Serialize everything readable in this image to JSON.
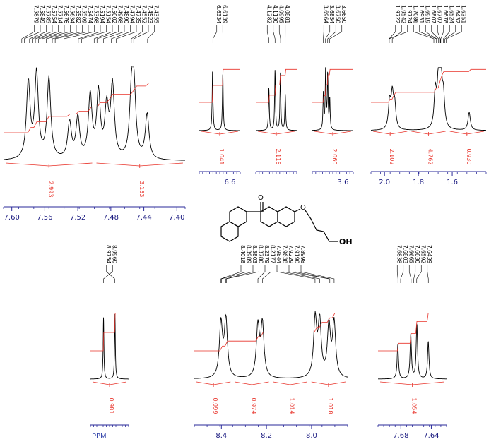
{
  "panels": [
    {
      "id": "aromatic-top",
      "peak_labels": [
        "7.5879",
        "7.5849",
        "7.5785",
        "7.5754",
        "7.5714",
        "7.5676",
        "7.5634",
        "7.5582",
        "7.5509",
        "7.5474",
        "7.5368",
        "7.5194",
        "7.5154",
        "7.5002",
        "7.4968",
        "7.4890",
        "7.4794",
        "7.4735",
        "7.4552",
        "7.4523",
        "7.4355"
      ],
      "integrals": [
        "2.993",
        "3.153"
      ],
      "ticks": [
        "7.60",
        "7.56",
        "7.52",
        "7.48",
        "7.44",
        "7.40"
      ],
      "x_range": [
        7.61,
        7.39
      ]
    },
    {
      "id": "olefin-6.6",
      "peak_labels": [
        "6.6334",
        "6.6139"
      ],
      "integrals": [
        "1.041"
      ],
      "ticks": [
        "6.6"
      ],
      "x_range": [
        6.66,
        6.58
      ]
    },
    {
      "id": "ch2o",
      "peak_labels": [
        "4.1282",
        "4.1130",
        "4.0995",
        "4.0881"
      ],
      "integrals": [
        "2.116"
      ],
      "ticks": [],
      "x_range": [
        4.16,
        4.06
      ]
    },
    {
      "id": "ch2oh",
      "peak_labels": [
        "3.6964",
        "3.6854",
        "3.6750",
        "3.6650"
      ],
      "integrals": [
        "2.060"
      ],
      "ticks": [
        "3.6"
      ],
      "x_range": [
        3.75,
        3.55
      ]
    },
    {
      "id": "aliphatic",
      "peak_labels": [
        "1.9722",
        "1.9542",
        "1.9724",
        "1.7086",
        "1.6931",
        "1.6919",
        "1.6807",
        "1.6707",
        "1.6678",
        "1.6524",
        "1.6432",
        "1.6351"
      ],
      "integrals": [
        "2.102",
        "4.762",
        "0.930"
      ],
      "ticks": [
        "2.0",
        "1.8",
        "1.6"
      ],
      "x_range": [
        2.08,
        1.4
      ]
    },
    {
      "id": "naphthyl-8.97",
      "peak_labels": [
        "8.9754",
        "8.9960"
      ],
      "integrals": [
        "0.981"
      ],
      "ticks": [],
      "x_range": [
        9.02,
        8.95
      ]
    },
    {
      "id": "aromatic-8.0-8.4",
      "peak_labels": [
        "8.4018",
        "8.3989",
        "8.3803",
        "8.3780",
        "8.2379",
        "8.2177",
        "7.9844",
        "7.9638",
        "7.9229",
        "7.9190",
        "7.8998"
      ],
      "integrals": [
        "0.999",
        "0.974",
        "1.014",
        "1.018"
      ],
      "ticks": [
        "8.4",
        "8.2",
        "8.0"
      ],
      "x_range": [
        8.52,
        7.84
      ]
    },
    {
      "id": "aromatic-7.66",
      "peak_labels": [
        "7.6838",
        "7.6803",
        "7.6665",
        "7.6630",
        "7.6592",
        "7.6439"
      ],
      "integrals": [
        "1.054"
      ],
      "ticks": [
        "7.68",
        "7.64"
      ],
      "x_range": [
        7.71,
        7.62
      ]
    }
  ],
  "axis_unit": "PPM",
  "structure": {
    "hydroxyl_label": "OH",
    "carbonyl_label": "O",
    "ether_label": "O"
  },
  "colors": {
    "spectrum": "#000000",
    "integral": "#e8332a",
    "axis": "#2a2a9a"
  },
  "chart_data": [
    {
      "type": "line",
      "description_label": "",
      "xlabel": "",
      "x_ticks": [
        "7.60",
        "7.56",
        "7.52",
        "7.48",
        "7.44",
        "7.40"
      ],
      "series": [
        {
          "values": [
            [
              7.58,
              0.85
            ],
            [
              7.57,
              0.95
            ],
            [
              7.555,
              0.9
            ],
            [
              7.53,
              0.4
            ],
            [
              7.52,
              0.45
            ],
            [
              7.505,
              0.7
            ],
            [
              7.495,
              0.72
            ],
            [
              7.485,
              0.55
            ],
            [
              7.478,
              0.8
            ],
            [
              7.455,
              0.65
            ],
            [
              7.452,
              0.72
            ],
            [
              7.436,
              0.5
            ]
          ]
        }
      ],
      "integrals": [
        2.993,
        3.153
      ]
    },
    {
      "type": "line",
      "x_ticks": [
        "6.6"
      ],
      "series": [
        {
          "values": [
            [
              6.634,
              1.0
            ],
            [
              6.614,
              0.95
            ]
          ]
        }
      ],
      "integrals": [
        1.041
      ]
    },
    {
      "type": "line",
      "x_ticks": [],
      "series": [
        {
          "values": [
            [
              4.128,
              0.7
            ],
            [
              4.113,
              1.0
            ],
            [
              4.1,
              0.95
            ],
            [
              4.088,
              0.6
            ]
          ]
        }
      ],
      "integrals": [
        2.116
      ]
    },
    {
      "type": "line",
      "x_ticks": [
        "3.6"
      ],
      "series": [
        {
          "values": [
            [
              3.696,
              0.6
            ],
            [
              3.685,
              1.0
            ],
            [
              3.675,
              0.9
            ],
            [
              3.665,
              0.5
            ]
          ]
        }
      ],
      "integrals": [
        2.06
      ]
    },
    {
      "type": "line",
      "x_ticks": [
        "2.0",
        "1.8",
        "1.6"
      ],
      "series": [
        {
          "values": [
            [
              1.97,
              0.45
            ],
            [
              1.954,
              0.55
            ],
            [
              1.94,
              0.4
            ],
            [
              1.7,
              0.6
            ],
            [
              1.68,
              0.95
            ],
            [
              1.667,
              0.85
            ],
            [
              1.652,
              0.5
            ],
            [
              1.5,
              0.3
            ]
          ]
        }
      ],
      "integrals": [
        2.102,
        4.762,
        0.93
      ]
    },
    {
      "type": "line",
      "x_ticks": [],
      "series": [
        {
          "values": [
            [
              8.996,
              0.9
            ],
            [
              8.975,
              0.95
            ]
          ]
        }
      ],
      "integrals": [
        0.981
      ]
    },
    {
      "type": "line",
      "x_ticks": [
        "8.4",
        "8.2",
        "8.0"
      ],
      "series": [
        {
          "values": [
            [
              8.402,
              0.8
            ],
            [
              8.38,
              0.85
            ],
            [
              8.238,
              0.75
            ],
            [
              8.218,
              0.78
            ],
            [
              7.984,
              0.85
            ],
            [
              7.964,
              0.8
            ],
            [
              7.923,
              0.75
            ],
            [
              7.9,
              0.8
            ]
          ]
        }
      ],
      "integrals": [
        0.999,
        0.974,
        1.014,
        1.018
      ]
    },
    {
      "type": "line",
      "x_ticks": [
        "7.68",
        "7.64"
      ],
      "series": [
        {
          "values": [
            [
              7.684,
              0.5
            ],
            [
              7.667,
              0.65
            ],
            [
              7.659,
              0.8
            ],
            [
              7.644,
              0.55
            ]
          ]
        }
      ],
      "integrals": [
        1.054
      ]
    }
  ]
}
